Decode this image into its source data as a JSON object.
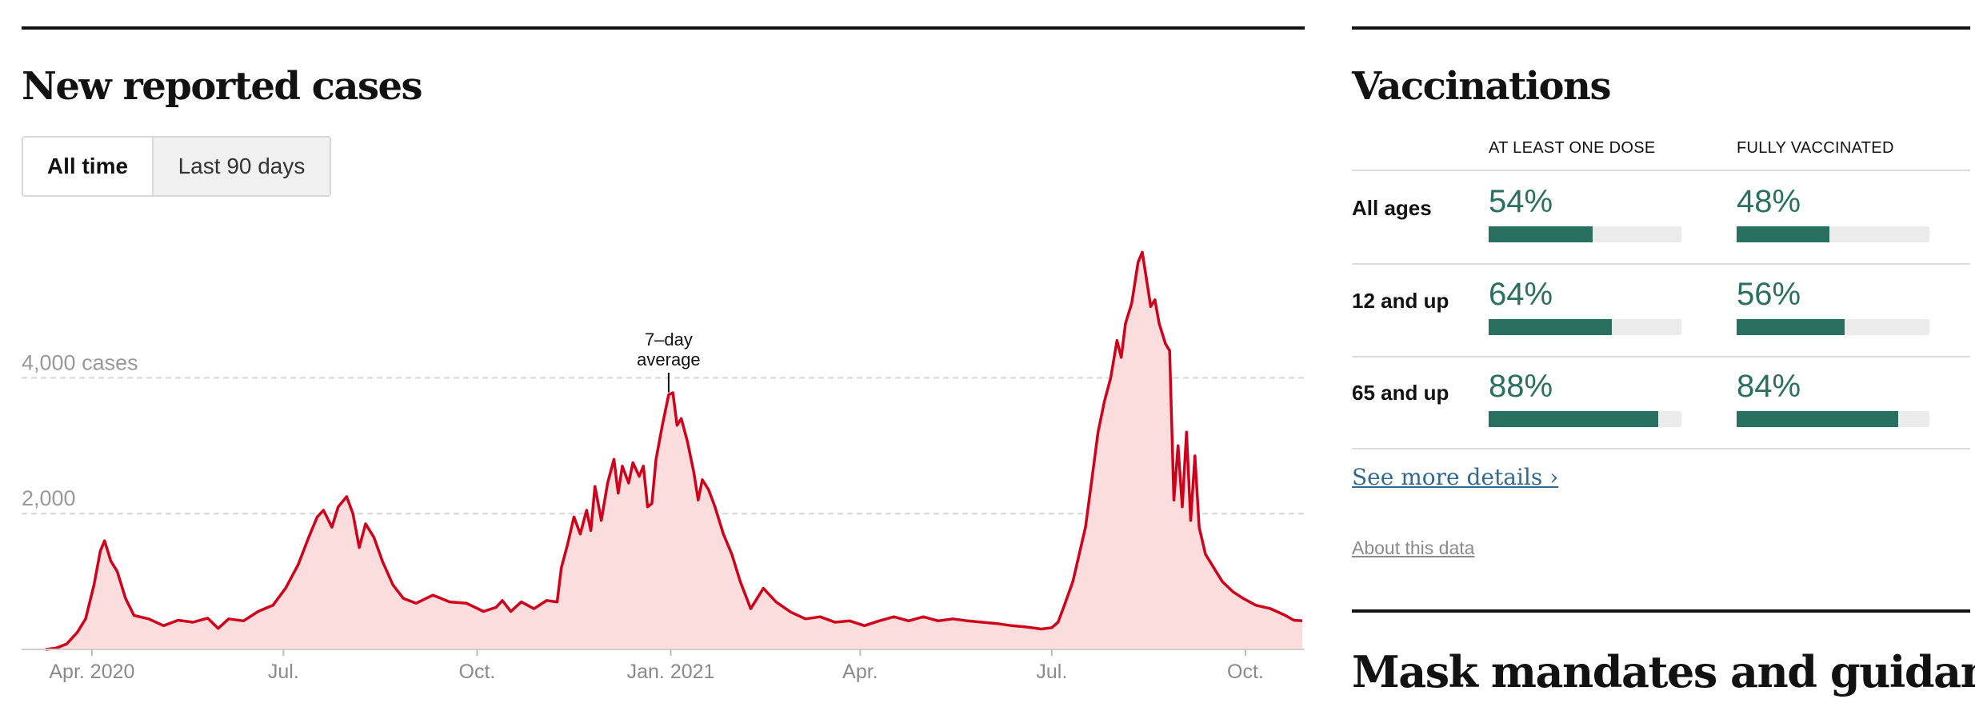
{
  "cases_section": {
    "title": "New reported cases",
    "toggle": {
      "active": "All time",
      "inactive": "Last 90 days"
    }
  },
  "chart_data": {
    "type": "area",
    "title": "New reported cases",
    "series_name": "7-day average",
    "annotation": "7–day average",
    "annotation_lines": [
      "7–day",
      "average"
    ],
    "annotation_x": "2020-12-31",
    "y_ticks": [
      {
        "value": 2000,
        "label": "2,000"
      },
      {
        "value": 4000,
        "label": "4,000 cases"
      }
    ],
    "x_ticks": [
      {
        "date": "2020-04-01",
        "label": "Apr. 2020"
      },
      {
        "date": "2020-07-01",
        "label": "Jul."
      },
      {
        "date": "2020-10-01",
        "label": "Oct."
      },
      {
        "date": "2021-01-01",
        "label": "Jan. 2021"
      },
      {
        "date": "2021-04-01",
        "label": "Apr."
      },
      {
        "date": "2021-07-01",
        "label": "Jul."
      },
      {
        "date": "2021-10-01",
        "label": "Oct."
      }
    ],
    "xlim": [
      "2020-03-10",
      "2021-10-28"
    ],
    "ylim": [
      0,
      6000
    ],
    "line_color": "#d0021b",
    "fill_color": "#fbdddd",
    "points": [
      [
        "2020-03-10",
        0
      ],
      [
        "2020-03-15",
        20
      ],
      [
        "2020-03-20",
        80
      ],
      [
        "2020-03-25",
        250
      ],
      [
        "2020-03-29",
        450
      ],
      [
        "2020-04-02",
        950
      ],
      [
        "2020-04-05",
        1450
      ],
      [
        "2020-04-07",
        1600
      ],
      [
        "2020-04-10",
        1300
      ],
      [
        "2020-04-13",
        1150
      ],
      [
        "2020-04-17",
        750
      ],
      [
        "2020-04-21",
        500
      ],
      [
        "2020-04-28",
        450
      ],
      [
        "2020-05-05",
        350
      ],
      [
        "2020-05-12",
        430
      ],
      [
        "2020-05-19",
        400
      ],
      [
        "2020-05-26",
        460
      ],
      [
        "2020-05-31",
        310
      ],
      [
        "2020-06-05",
        450
      ],
      [
        "2020-06-12",
        420
      ],
      [
        "2020-06-19",
        560
      ],
      [
        "2020-06-26",
        650
      ],
      [
        "2020-07-02",
        900
      ],
      [
        "2020-07-08",
        1250
      ],
      [
        "2020-07-13",
        1650
      ],
      [
        "2020-07-17",
        1950
      ],
      [
        "2020-07-20",
        2050
      ],
      [
        "2020-07-24",
        1800
      ],
      [
        "2020-07-27",
        2100
      ],
      [
        "2020-07-31",
        2250
      ],
      [
        "2020-08-03",
        2000
      ],
      [
        "2020-08-06",
        1500
      ],
      [
        "2020-08-09",
        1850
      ],
      [
        "2020-08-13",
        1650
      ],
      [
        "2020-08-17",
        1300
      ],
      [
        "2020-08-22",
        950
      ],
      [
        "2020-08-27",
        750
      ],
      [
        "2020-09-02",
        680
      ],
      [
        "2020-09-10",
        800
      ],
      [
        "2020-09-18",
        700
      ],
      [
        "2020-09-26",
        680
      ],
      [
        "2020-10-04",
        560
      ],
      [
        "2020-10-10",
        620
      ],
      [
        "2020-10-13",
        720
      ],
      [
        "2020-10-17",
        560
      ],
      [
        "2020-10-22",
        700
      ],
      [
        "2020-10-28",
        600
      ],
      [
        "2020-11-03",
        720
      ],
      [
        "2020-11-08",
        700
      ],
      [
        "2020-11-10",
        1200
      ],
      [
        "2020-11-13",
        1550
      ],
      [
        "2020-11-16",
        1950
      ],
      [
        "2020-11-19",
        1700
      ],
      [
        "2020-11-22",
        2050
      ],
      [
        "2020-11-24",
        1750
      ],
      [
        "2020-11-26",
        2400
      ],
      [
        "2020-11-29",
        1900
      ],
      [
        "2020-12-02",
        2450
      ],
      [
        "2020-12-05",
        2800
      ],
      [
        "2020-12-07",
        2300
      ],
      [
        "2020-12-09",
        2700
      ],
      [
        "2020-12-12",
        2450
      ],
      [
        "2020-12-14",
        2750
      ],
      [
        "2020-12-17",
        2550
      ],
      [
        "2020-12-19",
        2700
      ],
      [
        "2020-12-21",
        2100
      ],
      [
        "2020-12-23",
        2150
      ],
      [
        "2020-12-25",
        2800
      ],
      [
        "2020-12-28",
        3300
      ],
      [
        "2020-12-31",
        3750
      ],
      [
        "2021-01-02",
        3780
      ],
      [
        "2021-01-04",
        3300
      ],
      [
        "2021-01-06",
        3400
      ],
      [
        "2021-01-09",
        3050
      ],
      [
        "2021-01-12",
        2600
      ],
      [
        "2021-01-14",
        2200
      ],
      [
        "2021-01-16",
        2500
      ],
      [
        "2021-01-19",
        2350
      ],
      [
        "2021-01-22",
        2100
      ],
      [
        "2021-01-26",
        1700
      ],
      [
        "2021-01-30",
        1400
      ],
      [
        "2021-02-03",
        1000
      ],
      [
        "2021-02-08",
        600
      ],
      [
        "2021-02-14",
        900
      ],
      [
        "2021-02-20",
        700
      ],
      [
        "2021-02-27",
        550
      ],
      [
        "2021-03-06",
        450
      ],
      [
        "2021-03-13",
        480
      ],
      [
        "2021-03-20",
        400
      ],
      [
        "2021-03-27",
        420
      ],
      [
        "2021-04-03",
        350
      ],
      [
        "2021-04-10",
        420
      ],
      [
        "2021-04-17",
        480
      ],
      [
        "2021-04-24",
        420
      ],
      [
        "2021-05-01",
        480
      ],
      [
        "2021-05-08",
        420
      ],
      [
        "2021-05-15",
        450
      ],
      [
        "2021-05-22",
        420
      ],
      [
        "2021-05-29",
        400
      ],
      [
        "2021-06-05",
        380
      ],
      [
        "2021-06-12",
        350
      ],
      [
        "2021-06-19",
        330
      ],
      [
        "2021-06-26",
        300
      ],
      [
        "2021-07-01",
        320
      ],
      [
        "2021-07-04",
        400
      ],
      [
        "2021-07-07",
        650
      ],
      [
        "2021-07-11",
        1000
      ],
      [
        "2021-07-14",
        1400
      ],
      [
        "2021-07-17",
        1800
      ],
      [
        "2021-07-20",
        2500
      ],
      [
        "2021-07-23",
        3200
      ],
      [
        "2021-07-26",
        3650
      ],
      [
        "2021-07-29",
        4000
      ],
      [
        "2021-08-01",
        4550
      ],
      [
        "2021-08-03",
        4300
      ],
      [
        "2021-08-05",
        4800
      ],
      [
        "2021-08-08",
        5100
      ],
      [
        "2021-08-11",
        5700
      ],
      [
        "2021-08-13",
        5850
      ],
      [
        "2021-08-15",
        5450
      ],
      [
        "2021-08-17",
        5050
      ],
      [
        "2021-08-19",
        5150
      ],
      [
        "2021-08-21",
        4800
      ],
      [
        "2021-08-24",
        4500
      ],
      [
        "2021-08-26",
        4400
      ],
      [
        "2021-08-28",
        2200
      ],
      [
        "2021-08-30",
        3000
      ],
      [
        "2021-09-01",
        2100
      ],
      [
        "2021-09-03",
        3200
      ],
      [
        "2021-09-05",
        1900
      ],
      [
        "2021-09-07",
        2850
      ],
      [
        "2021-09-09",
        1800
      ],
      [
        "2021-09-12",
        1400
      ],
      [
        "2021-09-16",
        1200
      ],
      [
        "2021-09-20",
        1000
      ],
      [
        "2021-09-25",
        850
      ],
      [
        "2021-09-30",
        750
      ],
      [
        "2021-10-06",
        650
      ],
      [
        "2021-10-13",
        600
      ],
      [
        "2021-10-20",
        500
      ],
      [
        "2021-10-24",
        430
      ],
      [
        "2021-10-28",
        420
      ]
    ]
  },
  "vaccinations": {
    "title": "Vaccinations",
    "columns": [
      "AT LEAST ONE DOSE",
      "FULLY VACCINATED"
    ],
    "rows": [
      {
        "label": "All ages",
        "one_dose": "54%",
        "one_dose_value": 54,
        "fully": "48%",
        "fully_value": 48
      },
      {
        "label": "12 and up",
        "one_dose": "64%",
        "one_dose_value": 64,
        "fully": "56%",
        "fully_value": 56
      },
      {
        "label": "65 and up",
        "one_dose": "88%",
        "one_dose_value": 88,
        "fully": "84%",
        "fully_value": 84
      }
    ],
    "see_more": "See more details ›",
    "about": "About this data"
  },
  "masks_section": {
    "title": "Mask mandates and guidance"
  },
  "colors": {
    "case_line": "#d0021b",
    "case_fill": "#fbdddd",
    "vaccine_green": "#2a7060",
    "link_blue": "#326891"
  }
}
